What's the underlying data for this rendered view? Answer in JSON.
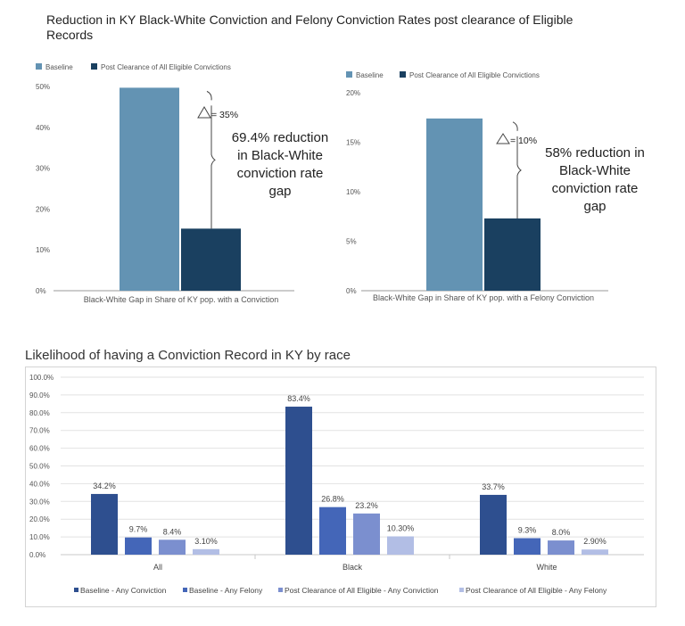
{
  "title_top": "Reduction in KY Black-White Conviction and Felony Conviction Rates post clearance of Eligible Records",
  "title_bottom": "Likelihood of having a Conviction Record in KY by race",
  "chart_data": [
    {
      "type": "bar",
      "categories": [
        "Black-White Gap in Share of KY pop. with a Conviction"
      ],
      "series": [
        {
          "name": "Baseline",
          "values": [
            49.7
          ],
          "color": "#6393b3"
        },
        {
          "name": "Post Clearance of All Eligible Convictions",
          "values": [
            15.2
          ],
          "color": "#1a4060"
        }
      ],
      "ylim": [
        0,
        50
      ],
      "yticks": [
        "0%",
        "10%",
        "20%",
        "30%",
        "40%",
        "50%"
      ],
      "ytick_values": [
        0,
        10,
        20,
        30,
        40,
        50
      ],
      "legend": "top-left",
      "annotations": {
        "delta": "= 35%",
        "note": [
          "69.4% reduction",
          "in Black-White",
          "conviction rate",
          "gap"
        ]
      }
    },
    {
      "type": "bar",
      "categories": [
        "Black-White Gap in Share of KY pop. with a Felony Conviction"
      ],
      "series": [
        {
          "name": "Baseline",
          "values": [
            17.4
          ],
          "color": "#6393b3"
        },
        {
          "name": "Post Clearance of All Eligible Convictions",
          "values": [
            7.3
          ],
          "color": "#1a4060"
        }
      ],
      "ylim": [
        0,
        20
      ],
      "yticks": [
        "0%",
        "5%",
        "10%",
        "15%",
        "20%"
      ],
      "ytick_values": [
        0,
        5,
        10,
        15,
        20
      ],
      "legend": "top-left",
      "annotations": {
        "delta": "= 10%",
        "note": [
          "58% reduction in",
          "Black-White",
          "conviction rate",
          "gap"
        ]
      }
    },
    {
      "type": "bar",
      "categories": [
        "All",
        "Black",
        "White"
      ],
      "series": [
        {
          "name": "Baseline - Any Conviction",
          "values": [
            34.2,
            83.4,
            33.7
          ],
          "labels": [
            "34.2%",
            "83.4%",
            "33.7%"
          ],
          "color": "#2e4f8f"
        },
        {
          "name": "Baseline - Any Felony",
          "values": [
            9.7,
            26.8,
            9.3
          ],
          "labels": [
            "9.7%",
            "26.8%",
            "9.3%"
          ],
          "color": "#4466b8"
        },
        {
          "name": "Post Clearance of All Eligible - Any Conviction",
          "values": [
            8.4,
            23.2,
            8.0
          ],
          "labels": [
            "8.4%",
            "23.2%",
            "8.0%"
          ],
          "color": "#7b8fcf"
        },
        {
          "name": "Post Clearance of All Eligible - Any Felony",
          "values": [
            3.1,
            10.3,
            2.9
          ],
          "labels": [
            "3.10%",
            "10.30%",
            "2.90%"
          ],
          "color": "#b2bee5"
        }
      ],
      "ylim": [
        0,
        100
      ],
      "yticks": [
        "0.0%",
        "10.0%",
        "20.0%",
        "30.0%",
        "40.0%",
        "50.0%",
        "60.0%",
        "70.0%",
        "80.0%",
        "90.0%",
        "100.0%"
      ],
      "ytick_values": [
        0,
        10,
        20,
        30,
        40,
        50,
        60,
        70,
        80,
        90,
        100
      ],
      "grid": true,
      "legend": "bottom"
    }
  ]
}
